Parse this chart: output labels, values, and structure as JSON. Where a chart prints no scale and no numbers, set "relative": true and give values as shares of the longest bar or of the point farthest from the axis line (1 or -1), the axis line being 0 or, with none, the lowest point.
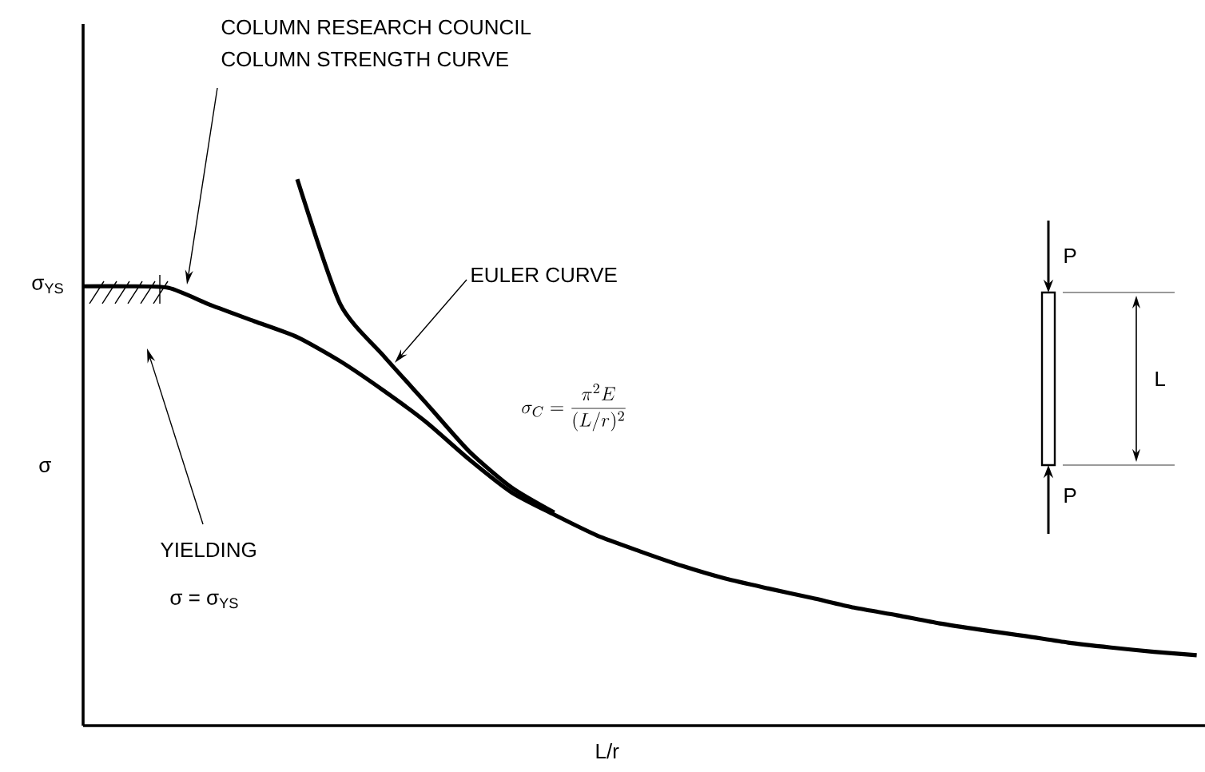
{
  "chart_data": {
    "type": "line",
    "relative": true,
    "xlabel": "L/r",
    "ylabel": "σ",
    "categories": [
      null,
      null,
      null,
      null,
      null,
      null,
      null,
      null,
      null,
      null,
      null,
      null,
      null,
      null,
      null,
      null,
      null,
      null,
      null,
      null,
      null,
      null,
      null,
      null,
      null,
      null,
      null
    ],
    "series": [
      {
        "color": "#000000",
        "values": [
          0.804,
          0.804,
          0.801,
          0.769,
          0.74,
          0.711,
          0.667,
          0.614,
          0.556,
          0.488,
          0.427,
          0.386,
          0.348,
          0.319,
          0.292,
          0.269,
          0.251,
          0.234,
          0.216,
          0.202,
          0.187,
          0.175,
          0.164,
          0.152,
          0.143,
          0.135,
          0.129
        ]
      },
      {
        "color": "#000000",
        "values": [
          null,
          null,
          null,
          null,
          null,
          1.0,
          0.772,
          0.678,
          0.591,
          0.503,
          0.436,
          0.39,
          null,
          null,
          null,
          null,
          null,
          null,
          null,
          null,
          null,
          null,
          null,
          null,
          null,
          null,
          null
        ]
      }
    ],
    "annotations": [
      "COLUMN RESEARCH COUNCIL",
      "COLUMN STRENGTH CURVE",
      "EULER CURVE",
      "\\sigma_{C} = \\frac{\\pi^{2}E}{(L/r)^{2}}",
      "YIELDING",
      "σ = σ$_{YS}$",
      "σ$_{YS}$",
      "P",
      "P",
      "L"
    ]
  }
}
